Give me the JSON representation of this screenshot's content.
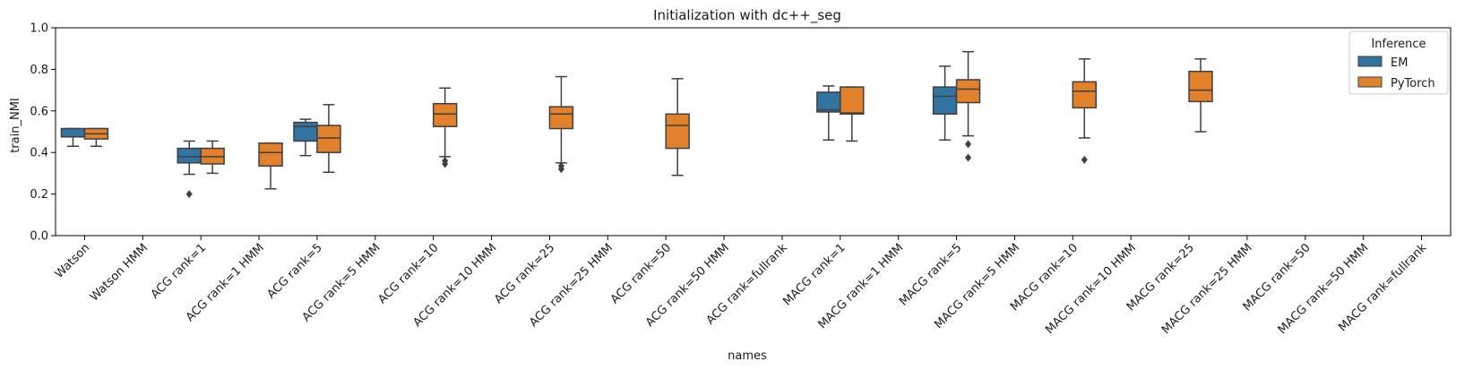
{
  "chart_data": {
    "type": "box",
    "title": "Initialization with dc++_seg",
    "xlabel": "names",
    "ylabel": "train_NMI",
    "ylim": [
      0,
      1.0
    ],
    "yticks": [
      "0.0",
      "0.2",
      "0.4",
      "0.6",
      "0.8",
      "1.0"
    ],
    "grid": false,
    "legend": {
      "title": "Inference",
      "placement": "top-right",
      "entries": [
        {
          "name": "EM",
          "color": "#3274a1"
        },
        {
          "name": "PyTorch",
          "color": "#e1812c"
        }
      ]
    },
    "categories": [
      "Watson",
      "Watson HMM",
      "ACG rank=1",
      "ACG rank=1 HMM",
      "ACG rank=5",
      "ACG rank=5 HMM",
      "ACG rank=10",
      "ACG rank=10 HMM",
      "ACG rank=25",
      "ACG rank=25 HMM",
      "ACG rank=50",
      "ACG rank=50 HMM",
      "ACG rank=fullrank",
      "MACG rank=1",
      "MACG rank=1 HMM",
      "MACG rank=5",
      "MACG rank=5 HMM",
      "MACG rank=10",
      "MACG rank=10 HMM",
      "MACG rank=25",
      "MACG rank=25 HMM",
      "MACG rank=50",
      "MACG rank=50 HMM",
      "MACG rank=fullrank"
    ],
    "boxes": [
      {
        "category": "Watson",
        "series": "EM",
        "min": 0.43,
        "q1": 0.475,
        "median": 0.475,
        "q3": 0.515,
        "max": 0.515,
        "outliers": []
      },
      {
        "category": "Watson",
        "series": "PyTorch",
        "min": 0.43,
        "q1": 0.465,
        "median": 0.49,
        "q3": 0.515,
        "max": 0.515,
        "outliers": []
      },
      {
        "category": "ACG rank=1",
        "series": "EM",
        "min": 0.295,
        "q1": 0.35,
        "median": 0.38,
        "q3": 0.42,
        "max": 0.455,
        "outliers": [
          0.2
        ]
      },
      {
        "category": "ACG rank=1",
        "series": "PyTorch",
        "min": 0.3,
        "q1": 0.345,
        "median": 0.38,
        "q3": 0.42,
        "max": 0.455,
        "outliers": []
      },
      {
        "category": "ACG rank=1 HMM",
        "series": "PyTorch",
        "min": 0.225,
        "q1": 0.335,
        "median": 0.4,
        "q3": 0.445,
        "max": 0.445,
        "outliers": []
      },
      {
        "category": "ACG rank=5",
        "series": "EM",
        "min": 0.385,
        "q1": 0.455,
        "median": 0.525,
        "q3": 0.545,
        "max": 0.56,
        "outliers": []
      },
      {
        "category": "ACG rank=5",
        "series": "PyTorch",
        "min": 0.305,
        "q1": 0.4,
        "median": 0.47,
        "q3": 0.53,
        "max": 0.63,
        "outliers": []
      },
      {
        "category": "ACG rank=10",
        "series": "PyTorch",
        "min": 0.38,
        "q1": 0.525,
        "median": 0.585,
        "q3": 0.635,
        "max": 0.71,
        "outliers": [
          0.345,
          0.36
        ]
      },
      {
        "category": "ACG rank=25",
        "series": "PyTorch",
        "min": 0.35,
        "q1": 0.515,
        "median": 0.585,
        "q3": 0.62,
        "max": 0.765,
        "outliers": [
          0.32,
          0.335
        ]
      },
      {
        "category": "ACG rank=50",
        "series": "PyTorch",
        "min": 0.29,
        "q1": 0.42,
        "median": 0.53,
        "q3": 0.585,
        "max": 0.755,
        "outliers": []
      },
      {
        "category": "MACG rank=1",
        "series": "EM",
        "min": 0.46,
        "q1": 0.595,
        "median": 0.605,
        "q3": 0.69,
        "max": 0.72,
        "outliers": []
      },
      {
        "category": "MACG rank=1",
        "series": "PyTorch",
        "min": 0.455,
        "q1": 0.585,
        "median": 0.59,
        "q3": 0.715,
        "max": 0.715,
        "outliers": []
      },
      {
        "category": "MACG rank=5",
        "series": "EM",
        "min": 0.46,
        "q1": 0.585,
        "median": 0.67,
        "q3": 0.715,
        "max": 0.815,
        "outliers": []
      },
      {
        "category": "MACG rank=5",
        "series": "PyTorch",
        "min": 0.48,
        "q1": 0.64,
        "median": 0.705,
        "q3": 0.75,
        "max": 0.885,
        "outliers": [
          0.375,
          0.44
        ]
      },
      {
        "category": "MACG rank=10",
        "series": "PyTorch",
        "min": 0.47,
        "q1": 0.615,
        "median": 0.695,
        "q3": 0.74,
        "max": 0.85,
        "outliers": [
          0.365
        ]
      },
      {
        "category": "MACG rank=25",
        "series": "PyTorch",
        "min": 0.5,
        "q1": 0.645,
        "median": 0.7,
        "q3": 0.79,
        "max": 0.85,
        "outliers": []
      }
    ]
  }
}
